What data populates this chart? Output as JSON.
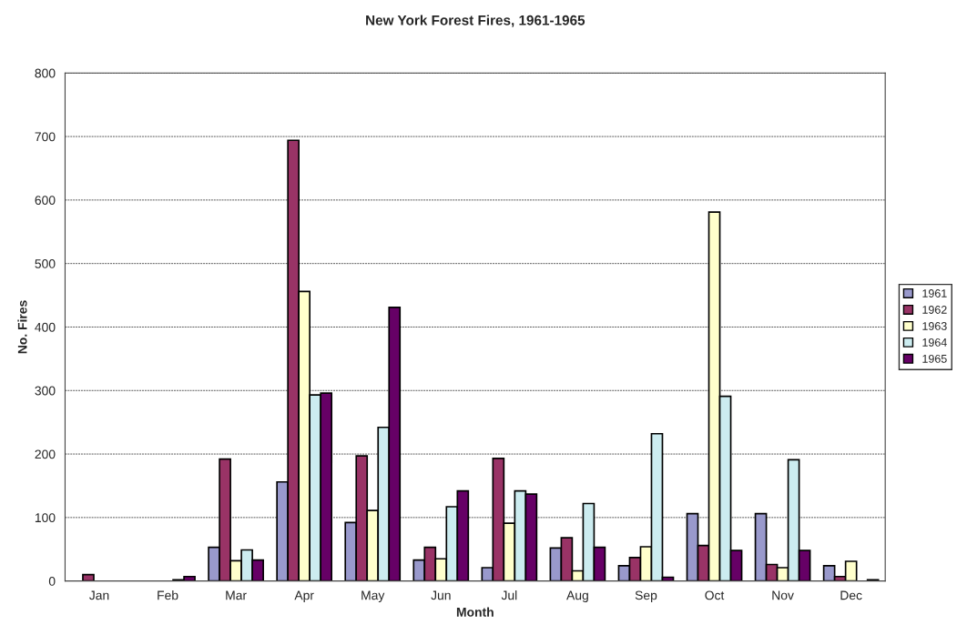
{
  "chart_data": {
    "type": "bar",
    "title": "New York Forest Fires, 1961-1965",
    "xlabel": "Month",
    "ylabel": "No. Fires",
    "categories": [
      "Jan",
      "Feb",
      "Mar",
      "Apr",
      "May",
      "Jun",
      "Jul",
      "Aug",
      "Sep",
      "Oct",
      "Nov",
      "Dec"
    ],
    "series": [
      {
        "name": "1961",
        "color": "#9999cc",
        "values": [
          null,
          null,
          53,
          156,
          92,
          33,
          21,
          52,
          24,
          106,
          106,
          24
        ]
      },
      {
        "name": "1962",
        "color": "#993366",
        "values": [
          10,
          null,
          192,
          694,
          197,
          53,
          193,
          68,
          37,
          56,
          26,
          7
        ]
      },
      {
        "name": "1963",
        "color": "#ffffcc",
        "values": [
          null,
          null,
          32,
          456,
          111,
          35,
          91,
          16,
          54,
          581,
          21,
          31
        ]
      },
      {
        "name": "1964",
        "color": "#ccecf0",
        "values": [
          null,
          2,
          49,
          293,
          242,
          117,
          142,
          122,
          232,
          291,
          191,
          null
        ]
      },
      {
        "name": "1965",
        "color": "#660066",
        "values": [
          null,
          7,
          33,
          296,
          431,
          142,
          137,
          53,
          6,
          48,
          48,
          2
        ]
      }
    ],
    "ylim": [
      0,
      800
    ],
    "yticks": [
      0,
      100,
      200,
      300,
      400,
      500,
      600,
      700,
      800
    ],
    "grid": "y",
    "legend": "right"
  }
}
